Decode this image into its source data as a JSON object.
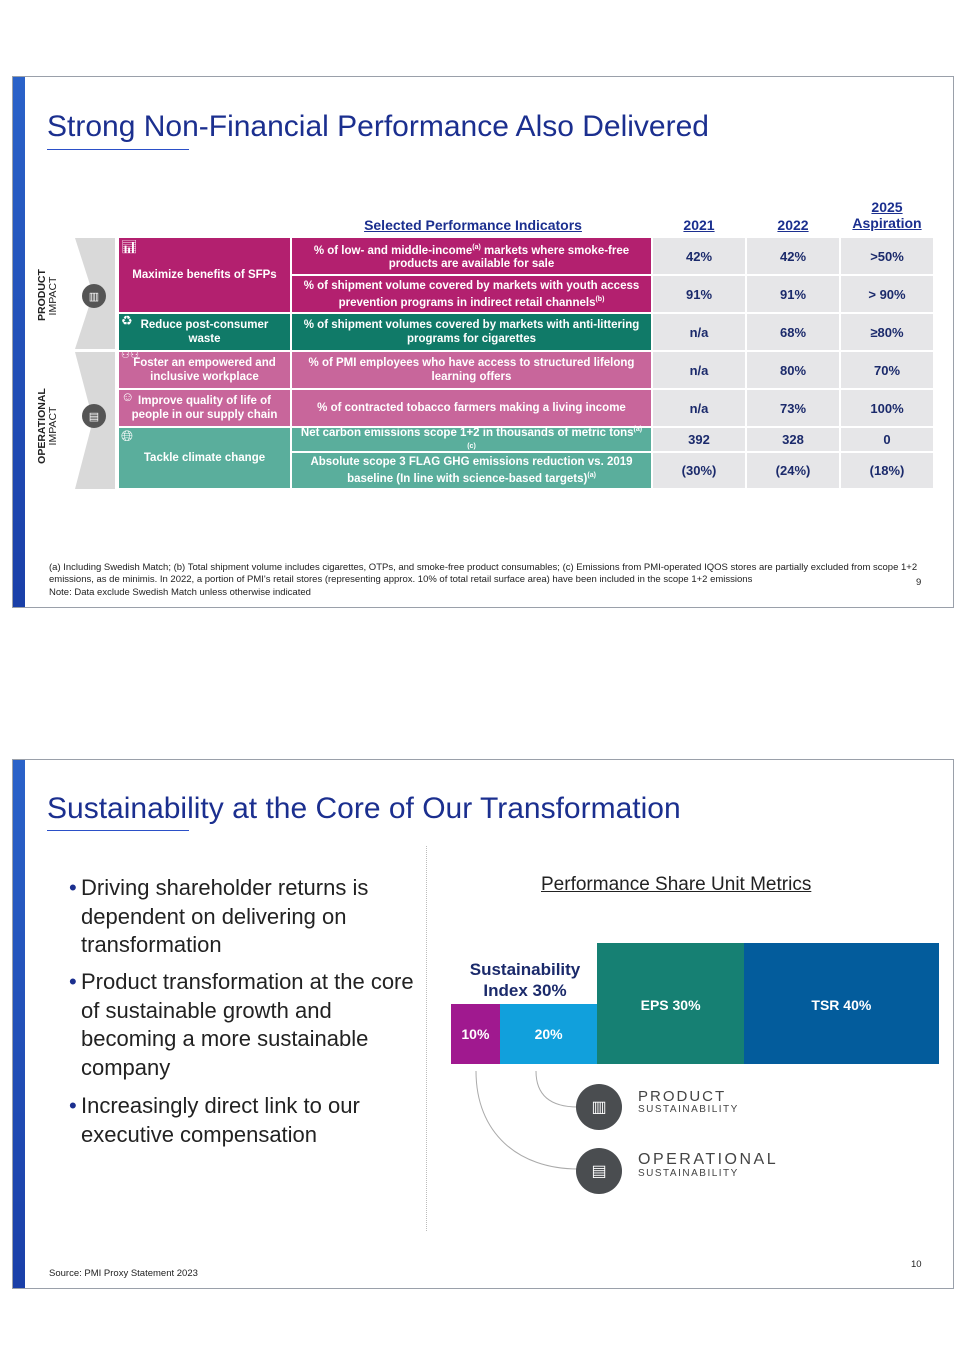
{
  "slide1": {
    "title": "Strong Non-Financial Performance Also Delivered",
    "headers": {
      "indicators": "Selected Performance Indicators",
      "y2021": "2021",
      "y2022": "2022",
      "y2025": "2025 Aspiration"
    },
    "side_labels": {
      "product": "PRODUCT",
      "product_sub": "IMPACT",
      "operational": "OPERATIONAL",
      "operational_sub": "IMPACT"
    },
    "categories": [
      {
        "label": "Maximize benefits of SFPs",
        "icon": "chart-icon"
      },
      {
        "label": "Reduce post-consumer waste",
        "icon": "recycle-icon"
      },
      {
        "label": "Foster an empowered and inclusive workplace",
        "icon": "people-icon"
      },
      {
        "label": "Improve quality of life of people in our supply chain",
        "icon": "person-icon"
      },
      {
        "label": "Tackle climate change",
        "icon": "globe-icon"
      }
    ],
    "rows": [
      {
        "indicator": "% of low- and middle-income",
        "sup": "(a)",
        "indicator_rest": " markets where smoke-free products are available for sale",
        "v2021": "42%",
        "v2022": "42%",
        "v2025": ">50%"
      },
      {
        "indicator": "% of shipment volume covered by markets with youth access prevention programs in indirect retail channels",
        "sup": "(b)",
        "indicator_rest": "",
        "v2021": "91%",
        "v2022": "91%",
        "v2025": "> 90%"
      },
      {
        "indicator": "% of shipment volumes covered by markets with anti-littering programs for cigarettes",
        "sup": "",
        "indicator_rest": "",
        "v2021": "n/a",
        "v2022": "68%",
        "v2025": "≥80%"
      },
      {
        "indicator": "% of PMI employees who have access to structured lifelong learning offers",
        "sup": "",
        "indicator_rest": "",
        "v2021": "n/a",
        "v2022": "80%",
        "v2025": "70%"
      },
      {
        "indicator": "% of contracted tobacco farmers making a living income",
        "sup": "",
        "indicator_rest": "",
        "v2021": "n/a",
        "v2022": "73%",
        "v2025": "100%"
      },
      {
        "indicator": "Net carbon emissions scope 1+2 in thousands of metric tons",
        "sup": "(a)(c)",
        "indicator_rest": "",
        "v2021": "392",
        "v2022": "328",
        "v2025": "0"
      },
      {
        "indicator": "Absolute scope 3 FLAG GHG emissions reduction vs. 2019 baseline (In line with science-based targets)",
        "sup": "(a)",
        "indicator_rest": "",
        "v2021": "(30%)",
        "v2022": "(24%)",
        "v2025": "(18%)"
      }
    ],
    "footnote1": "(a) Including Swedish Match; (b) Total shipment volume includes cigarettes, OTPs, and smoke-free product consumables; (c) Emissions from PMI-operated IQOS stores are partially excluded from scope 1+2 emissions, as de minimis. In 2022, a portion of PMI's retail stores (representing approx. 10% of total retail surface area) have been included in the scope 1+2 emissions",
    "footnote2": "Note: Data exclude Swedish Match unless otherwise indicated",
    "page": "9",
    "colors": {
      "magenta": "#b3206f",
      "dark_teal": "#107a68",
      "pink": "#c8669b",
      "light_teal": "#5aae9c"
    }
  },
  "slide2": {
    "title": "Sustainability at the Core of Our Transformation",
    "bullets": [
      "Driving shareholder returns is dependent on delivering on transformation",
      "Product transformation at the core of sustainable growth and becoming a more sustainable company",
      "Increasingly direct link to our executive compensation"
    ],
    "chart_title": "Performance Share Unit Metrics",
    "index_label": "Sustainability Index 30%",
    "chart_data": {
      "type": "bar",
      "orientation": "horizontal-stacked",
      "categories": [
        "Operational sustainability",
        "Product sustainability",
        "EPS",
        "TSR"
      ],
      "labels": [
        "10%",
        "20%",
        "EPS 30%",
        "TSR 40%"
      ],
      "values": [
        10,
        20,
        30,
        40
      ],
      "colors": [
        "#a0198f",
        "#11a0dc",
        "#168073",
        "#035c9c"
      ]
    },
    "legend": [
      {
        "title": "PRODUCT",
        "sub": "SUSTAINABILITY",
        "icon": "product-icon"
      },
      {
        "title": "OPERATIONAL",
        "sub": "SUSTAINABILITY",
        "icon": "factory-icon"
      }
    ],
    "source": "Source: PMI Proxy Statement 2023",
    "page": "10"
  }
}
